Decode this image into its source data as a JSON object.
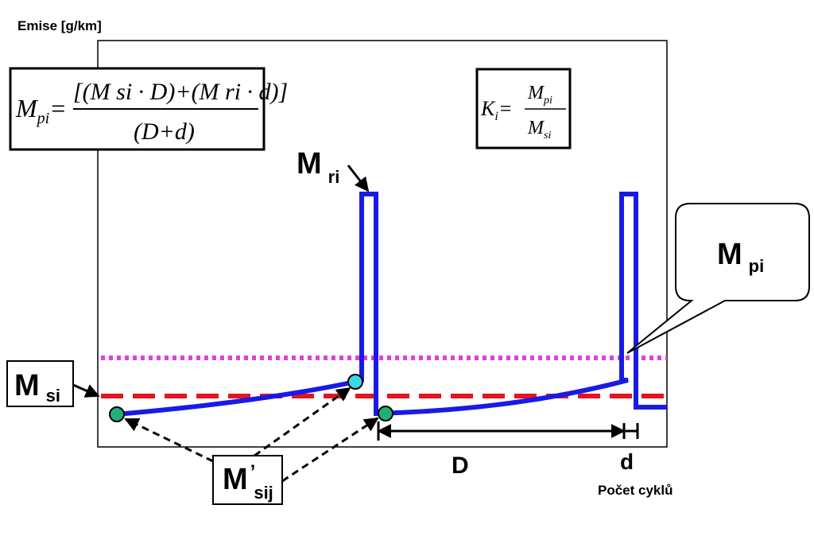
{
  "axes": {
    "ylabel": "Emise [g/km]",
    "xlabel": "Počet cyklů"
  },
  "labels": {
    "m_ri": {
      "main": "M",
      "sub": "ri"
    },
    "m_si": {
      "main": "M",
      "sub": "si"
    },
    "m_pi": {
      "main": "M",
      "sub": "pi"
    },
    "m_sij": {
      "main": "M",
      "sup": "’",
      "sub": "sij"
    },
    "D": "D",
    "d": "d"
  },
  "formulas": {
    "mpi": {
      "lhs": "M",
      "lhs_sub": "pi",
      "eq": "=",
      "numerator": "[(M si · D)+(M ri · d)]",
      "denominator": "(D+d)"
    },
    "ki": {
      "lhs": "K",
      "lhs_sub": "i",
      "eq": "=",
      "num": "M",
      "num_sub": "pi",
      "den": "M",
      "den_sub": "si"
    }
  },
  "colors": {
    "curve": "#1a1ae6",
    "msi_line": "#e6141e",
    "mpi_line": "#e040e0",
    "marker": "#1fb07a",
    "marker_light": "#38d8e8"
  }
}
